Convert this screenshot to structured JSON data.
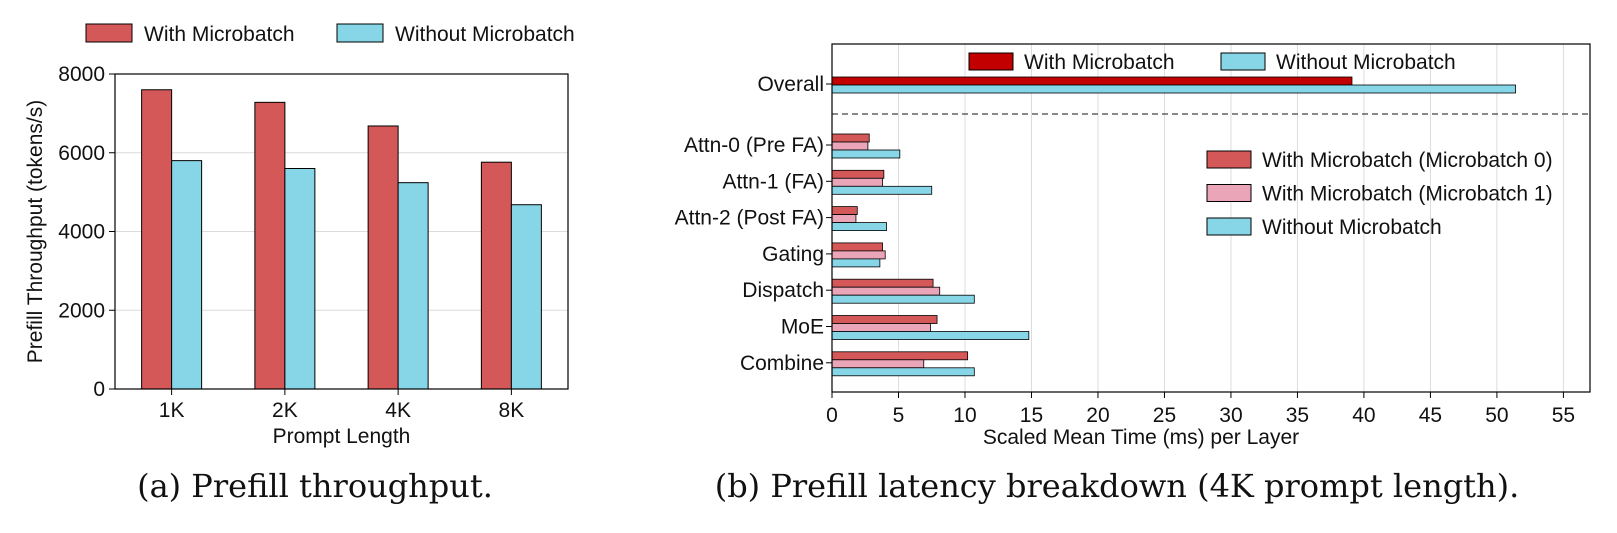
{
  "colors": {
    "with_microbatch": "#d45858",
    "without_microbatch": "#86d6e8",
    "overall_with": "#c20000",
    "microbatch_1": "#eaa6b8",
    "grid": "#dcdcdc",
    "axis": "#000000"
  },
  "chart_data": [
    {
      "type": "bar",
      "caption": "(a) Prefill throughput.",
      "categories": [
        "1K",
        "2K",
        "4K",
        "8K"
      ],
      "series": [
        {
          "name": "With Microbatch",
          "values": [
            7600,
            7280,
            6680,
            5760
          ]
        },
        {
          "name": "Without Microbatch",
          "values": [
            5800,
            5600,
            5240,
            4680
          ]
        }
      ],
      "xlabel": "Prompt Length",
      "ylabel": "Prefill Throughput (tokens/s)",
      "ylim": [
        0,
        8000
      ],
      "yticks": [
        "0",
        "2000",
        "4000",
        "6000",
        "8000"
      ],
      "grid": "horizontal",
      "legend_position": "top, outside"
    },
    {
      "type": "bar",
      "orientation": "horizontal",
      "caption": "(b) Prefill latency breakdown (4K prompt length).",
      "overall": {
        "label": "Overall",
        "series": [
          {
            "name": "With Microbatch",
            "value": 39.1
          },
          {
            "name": "Without Microbatch",
            "value": 51.4
          }
        ]
      },
      "categories": [
        "Attn-0 (Pre FA)",
        "Attn-1 (FA)",
        "Attn-2 (Post FA)",
        "Gating",
        "Dispatch",
        "MoE",
        "Combine"
      ],
      "series": [
        {
          "name": "With Microbatch (Microbatch 0)",
          "values": [
            2.8,
            3.9,
            1.9,
            3.8,
            7.6,
            7.9,
            10.2
          ]
        },
        {
          "name": "With Microbatch (Microbatch 1)",
          "values": [
            2.7,
            3.8,
            1.8,
            4.0,
            8.1,
            7.4,
            6.9
          ]
        },
        {
          "name": "Without Microbatch",
          "values": [
            5.1,
            7.5,
            4.1,
            3.6,
            10.7,
            14.8,
            10.7
          ]
        }
      ],
      "xlabel": "Scaled Mean Time (ms) per Layer",
      "xlim": [
        0,
        57
      ],
      "xticks": [
        "0",
        "5",
        "10",
        "15",
        "20",
        "25",
        "30",
        "35",
        "40",
        "45",
        "50",
        "55"
      ],
      "grid": "vertical",
      "legend_position": "top (overall legend) and right (breakdown legend)"
    }
  ]
}
